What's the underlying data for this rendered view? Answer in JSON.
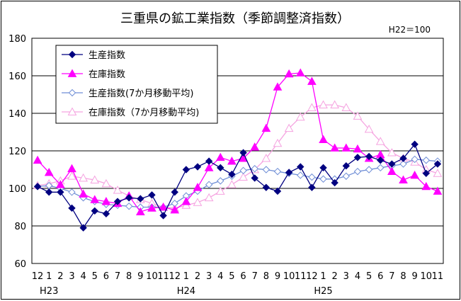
{
  "chart_data": {
    "type": "line",
    "title": "三重県の鉱工業指数（季節調整済指数）",
    "note": "H22＝100",
    "ylim": [
      60,
      180
    ],
    "yticks": [
      60,
      80,
      100,
      120,
      140,
      160,
      180
    ],
    "grid": true,
    "legend": "top-left",
    "categories": [
      "12",
      "1",
      "2",
      "3",
      "4",
      "5",
      "6",
      "7",
      "8",
      "9",
      "10",
      "11",
      "12",
      "1",
      "2",
      "3",
      "4",
      "5",
      "6",
      "7",
      "8",
      "9",
      "10",
      "11",
      "12",
      "1",
      "2",
      "3",
      "4",
      "5",
      "6",
      "7",
      "8",
      "9",
      "10",
      "11"
    ],
    "year_labels": [
      {
        "label": "H23",
        "index": 1
      },
      {
        "label": "H24",
        "index": 13
      },
      {
        "label": "H25",
        "index": 25
      }
    ],
    "series": [
      {
        "name": "生産指数",
        "color": "#000080",
        "marker": "diamond-filled",
        "values": [
          101,
          98,
          98,
          89.5,
          79,
          88,
          86.5,
          93,
          95,
          94.5,
          96.5,
          85.5,
          98,
          110,
          111.5,
          114.5,
          111,
          107.5,
          119,
          105.5,
          100.5,
          98.5,
          108.5,
          111.5,
          100.5,
          111,
          103,
          112,
          116.5,
          117,
          115,
          113,
          116,
          123.5,
          108,
          113
        ]
      },
      {
        "name": "在庫指数",
        "color": "#ff00ff",
        "marker": "triangle-filled",
        "values": [
          115,
          108.5,
          102,
          110.5,
          97,
          94,
          93,
          92,
          96,
          87.5,
          89.5,
          90,
          88.5,
          93,
          100.5,
          111,
          116.5,
          114.5,
          116,
          122,
          132,
          154,
          161,
          161.5,
          157,
          126,
          121.5,
          121.5,
          121,
          116,
          118,
          109,
          104.5,
          107,
          101,
          98.5
        ]
      },
      {
        "name": "生産指数(7か月移動平均)",
        "color": "#6f8ed6",
        "marker": "diamond-open",
        "values": [
          101,
          101.5,
          100,
          98,
          95,
          93,
          91.5,
          91,
          90.5,
          90,
          90,
          90,
          92,
          96,
          98.5,
          102,
          104,
          106.5,
          109.5,
          110.5,
          110,
          109,
          108,
          107,
          106,
          105,
          105,
          106.5,
          109,
          110,
          111,
          112,
          113,
          115.5,
          115,
          114.5
        ]
      },
      {
        "name": "在庫指数（7か月移動平均)",
        "color": "#f5a3e0",
        "marker": "triangle-open",
        "values": [
          101.5,
          102.5,
          104,
          106.5,
          105.5,
          104.5,
          102.5,
          99,
          96,
          94,
          92,
          90,
          89.5,
          91,
          92.5,
          95,
          98.5,
          102,
          106,
          110,
          116,
          124,
          132,
          138,
          143,
          144.5,
          144.5,
          143,
          138.5,
          131.5,
          125,
          119,
          116,
          114,
          110,
          108
        ]
      }
    ]
  }
}
